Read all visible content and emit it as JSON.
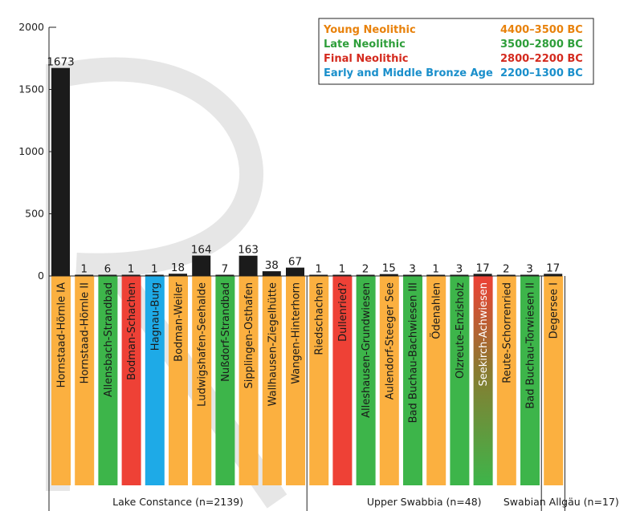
{
  "chart_data": {
    "type": "bar",
    "y_ticks": [
      "0",
      "500",
      "1000",
      "1500",
      "2000"
    ],
    "ylim": [
      0,
      2000
    ],
    "legend": {
      "position": "top-right",
      "entries": [
        {
          "key": "young",
          "name": "Young Neolithic",
          "date": "4400–3500 BC",
          "color": "#E8820C"
        },
        {
          "key": "late",
          "name": "Late Neolithic",
          "date": "3500–2800 BC",
          "color": "#2E9E3A"
        },
        {
          "key": "final",
          "name": "Final Neolithic",
          "date": "2800–2200 BC",
          "color": "#D42A1E"
        },
        {
          "key": "bronze",
          "name": "Early and Middle Bronze Age",
          "date": "2200–1300  BC",
          "color": "#1A8FCB"
        }
      ]
    },
    "period_fill_colors": {
      "young": "#FBB040",
      "late": "#3DB54A",
      "final": "#EE4136",
      "bronze": "#1EAAE7",
      "late-final": "#8A7A30"
    },
    "bar_color": "#1b1b1b",
    "categories": [
      "Hornstaad-Hörnle IA",
      "Hornstaad-Hörnle II",
      "Allensbach-Strandbad",
      "Bodman-Schachen",
      "Hagnau-Burg",
      "Bodman-Weiler",
      "Ludwigshafen-Seehalde",
      "Nußdorf-Strandbad",
      "Sipplingen-Osthafen",
      "Wallhausen-Ziegelhütte",
      "Wangen-Hinterhorn",
      "Riedschachen",
      "Dullenried?",
      "Alleshausen-Grundwiesen",
      "Aulendorf-Steeger See",
      "Bad Buchau-Bachwiesen III",
      "Ödenahlen",
      "Olzreute-Enzisholz",
      "Seekirch-Achwiesen",
      "Reute-Schorrenried",
      "Bad Buchau-Torwiesen II",
      "Degersee I"
    ],
    "values": [
      1673,
      1,
      6,
      1,
      1,
      18,
      164,
      7,
      163,
      38,
      67,
      1,
      1,
      2,
      15,
      3,
      1,
      3,
      17,
      2,
      3,
      17
    ],
    "value_labels": [
      "1673",
      "1",
      "6",
      "1",
      "1",
      "18",
      "164",
      "7",
      "163",
      "38",
      "67",
      "1",
      "1",
      "2",
      "15",
      "3",
      "1",
      "3",
      "17",
      "2",
      "3",
      "17"
    ],
    "periods": [
      "young",
      "young",
      "late",
      "final",
      "bronze",
      "young",
      "young",
      "late",
      "young",
      "young",
      "young",
      "young",
      "final",
      "late",
      "young",
      "late",
      "young",
      "late",
      "late-final",
      "young",
      "late",
      "young"
    ],
    "groups": [
      {
        "label": "Lake Constance (n=2139)",
        "count": 11
      },
      {
        "label": "Upper Swabbia (n=48)",
        "count": 10
      },
      {
        "label": "Swabian Allgäu (n=17)",
        "count": 1
      }
    ]
  }
}
